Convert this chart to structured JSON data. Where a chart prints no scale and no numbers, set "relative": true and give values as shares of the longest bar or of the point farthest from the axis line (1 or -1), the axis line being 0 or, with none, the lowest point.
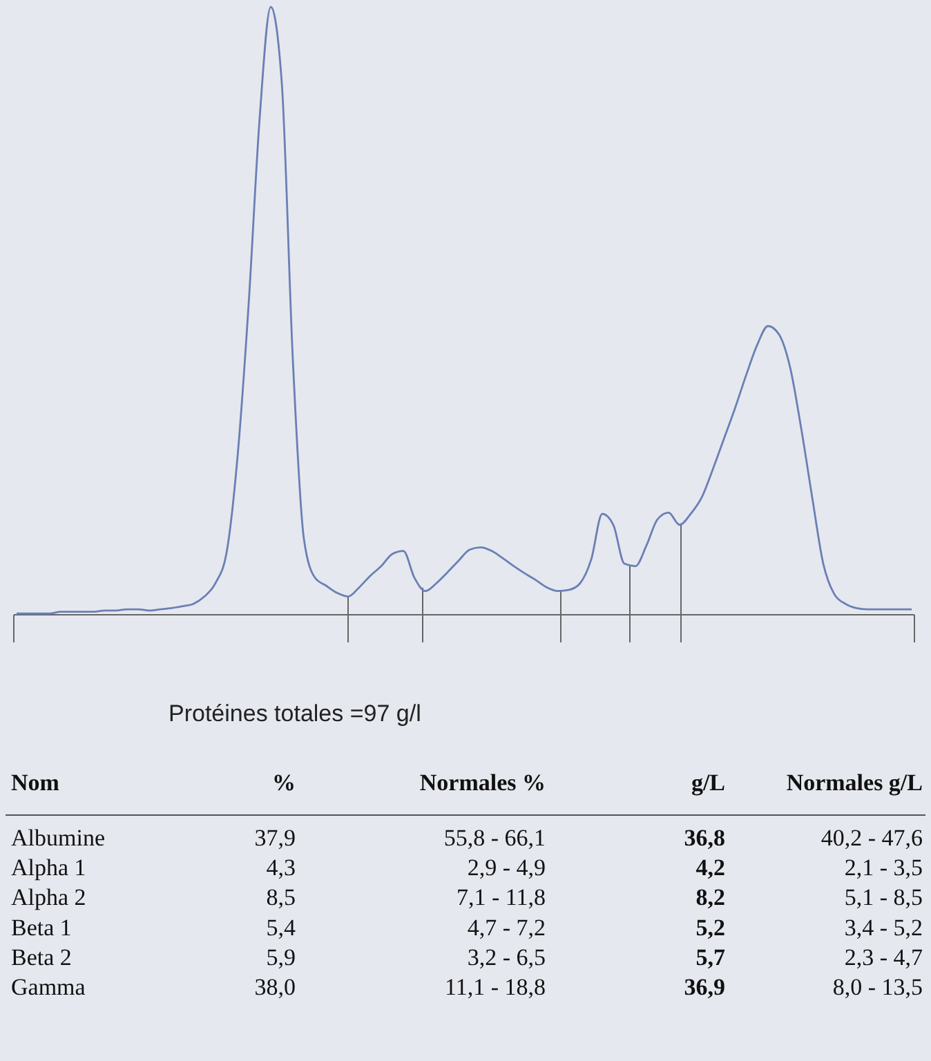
{
  "chart_data": [
    {
      "type": "line",
      "relative": true,
      "color": "#6a7fb5",
      "categories": [
        null,
        null,
        null,
        null,
        null,
        null,
        null,
        null,
        null,
        null,
        null,
        null,
        null,
        null,
        null,
        null,
        null,
        null,
        null,
        null,
        null,
        null,
        null,
        null,
        null,
        null,
        null,
        null,
        null,
        null,
        null,
        null,
        null,
        null,
        null,
        null,
        null,
        null,
        null,
        null,
        null,
        null,
        null,
        null,
        null,
        null,
        null,
        null,
        null,
        null,
        null,
        null,
        null,
        null,
        null,
        null,
        null,
        null,
        null,
        null,
        null,
        null,
        null,
        null,
        null,
        null,
        null,
        null,
        null,
        null,
        null,
        null,
        null,
        null,
        null,
        null,
        null,
        null,
        null,
        null,
        null,
        null
      ],
      "values": [
        0.002,
        0.002,
        0.002,
        0.002,
        0.005,
        0.005,
        0.005,
        0.005,
        0.007,
        0.007,
        0.009,
        0.009,
        0.007,
        0.009,
        0.011,
        0.014,
        0.018,
        0.03,
        0.052,
        0.102,
        0.261,
        0.511,
        0.818,
        1,
        0.875,
        0.42,
        0.125,
        0.061,
        0.048,
        0.036,
        0.03,
        0.045,
        0.064,
        0.08,
        0.1,
        0.105,
        0.061,
        0.039,
        0.052,
        0.07,
        0.089,
        0.107,
        0.111,
        0.105,
        0.093,
        0.08,
        0.068,
        0.057,
        0.045,
        0.039,
        0.041,
        0.052,
        0.091,
        0.166,
        0.148,
        0.084,
        0.08,
        0.114,
        0.157,
        0.168,
        0.148,
        0.166,
        0.193,
        0.239,
        0.289,
        0.339,
        0.393,
        0.443,
        0.475,
        0.461,
        0.407,
        0.307,
        0.193,
        0.084,
        0.034,
        0.018,
        0.011,
        0.009,
        0.009,
        0.009,
        0.009,
        0.009
      ]
    },
    {
      "type": "other",
      "title": "Protéines totales =97 g/l",
      "annotations": [
        "Nom",
        "%",
        "Normales %",
        "g/L",
        "Normales g/L",
        "Albumine",
        "37,9",
        "55,8 - 66,1",
        "36,8",
        "40,2 - 47,6",
        "Alpha 1",
        "4,3",
        "2,9 - 4,9",
        "4,2",
        "2,1 - 3,5",
        "Alpha 2",
        "8,5",
        "7,1 - 11,8",
        "8,2",
        "5,1 - 8,5",
        "Beta 1",
        "5,4",
        "4,7 - 7,2",
        "5,2",
        "3,4 - 5,2",
        "Beta 2",
        "5,9",
        "3,2 - 6,5",
        "5,7",
        "2,3 - 4,7",
        "Gamma",
        "38,0",
        "11,1 - 18,8",
        "36,9",
        "8,0 - 13,5"
      ]
    }
  ]
}
